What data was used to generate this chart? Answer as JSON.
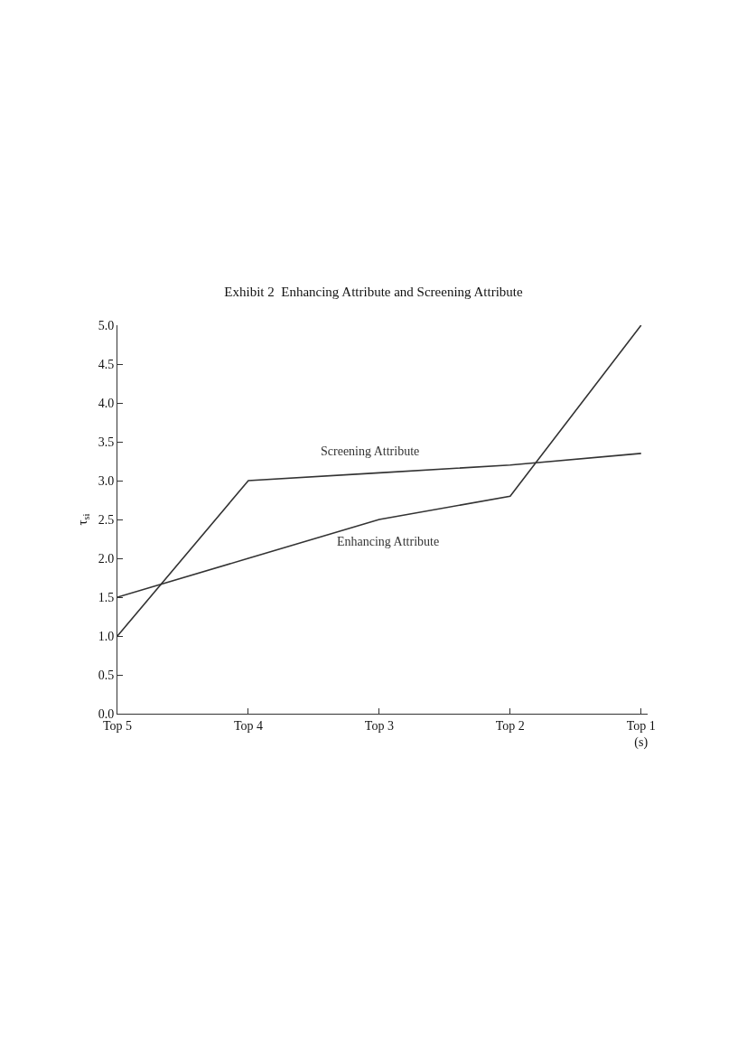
{
  "chart_data": {
    "type": "line",
    "title": "Exhibit 2  Enhancing Attribute and Screening Attribute",
    "ylabel": "τ$_{si}$",
    "categories": [
      "Top 5",
      "Top 4",
      "Top 3",
      "Top 2",
      "Top 1\n(s)"
    ],
    "series": [
      {
        "name": "Enhancing Attribute",
        "color": "#333333",
        "values": [
          1.5,
          2.0,
          2.5,
          2.8,
          5.0
        ]
      },
      {
        "name": "Screening Attribute",
        "color": "#333333",
        "values": [
          1.0,
          3.0,
          3.1,
          3.2,
          3.35
        ]
      }
    ],
    "ylim": [
      0,
      5
    ],
    "yticks": [
      {
        "value": 0,
        "label": "0.0"
      },
      {
        "value": 0.5,
        "label": "0.5"
      },
      {
        "value": 1,
        "label": "1.0"
      },
      {
        "value": 1.5,
        "label": "1.5"
      },
      {
        "value": 2,
        "label": "2.0"
      },
      {
        "value": 2.5,
        "label": "2.5"
      },
      {
        "value": 3,
        "label": "3.0"
      },
      {
        "value": 3.5,
        "label": "3.5"
      },
      {
        "value": 4,
        "label": "4.0"
      },
      {
        "value": 4.5,
        "label": "4.5"
      },
      {
        "value": 5,
        "label": "5.0"
      }
    ],
    "legend": false,
    "marker": "none",
    "line_style": "solid"
  }
}
